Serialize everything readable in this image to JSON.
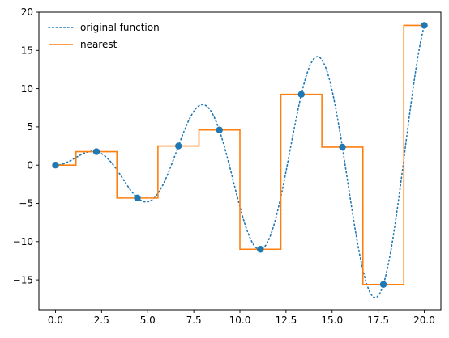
{
  "chart_data": {
    "type": "line",
    "title": "",
    "xlabel": "",
    "ylabel": "",
    "xlim": [
      -0.9,
      20.9
    ],
    "ylim": [
      -18.9,
      20
    ],
    "xticks": [
      0.0,
      2.5,
      5.0,
      7.5,
      10.0,
      12.5,
      15.0,
      17.5,
      20.0
    ],
    "xtick_labels": [
      "0.0",
      "2.5",
      "5.0",
      "7.5",
      "10.0",
      "12.5",
      "15.0",
      "17.5",
      "20.0"
    ],
    "yticks": [
      -15,
      -10,
      -5,
      0,
      5,
      10,
      15,
      20
    ],
    "ytick_labels": [
      "−15",
      "−10",
      "−5",
      "0",
      "5",
      "10",
      "15",
      "20"
    ],
    "legend_position": "top-left",
    "grid": false,
    "sample_points": {
      "x": [
        0.0,
        2.22,
        4.44,
        6.67,
        8.89,
        11.11,
        13.33,
        15.56,
        17.78,
        20.0
      ],
      "y": [
        0.0,
        1.76,
        -4.3,
        2.5,
        4.6,
        -11.0,
        9.25,
        2.35,
        -15.6,
        18.26
      ]
    },
    "series": [
      {
        "name": "original function",
        "style": "dotted",
        "color": "#1f77b4",
        "function": "x*sin(x)",
        "x_range": [
          0,
          20
        ]
      },
      {
        "name": "nearest",
        "style": "step-nearest",
        "color": "#ff7f0e"
      }
    ],
    "marker_color": "#1f77b4"
  }
}
